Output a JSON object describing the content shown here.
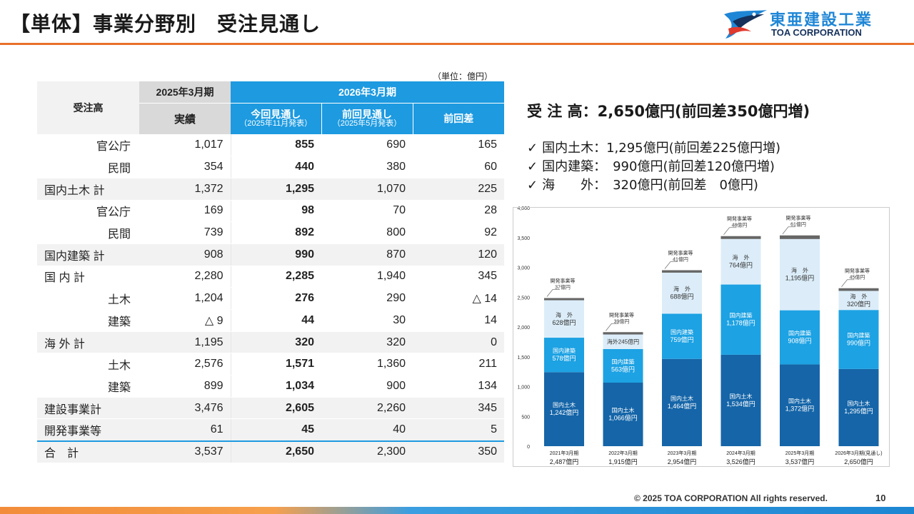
{
  "page": {
    "title": "【単体】事業分野別　受注見通し",
    "unit_note": "（単位：億円）",
    "footer": "© 2025 TOA CORPORATION  All rights reserved.",
    "page_number": "10"
  },
  "logo": {
    "jp": "東亜建設工業",
    "en": "TOA CORPORATION"
  },
  "table": {
    "header_label": "受注高",
    "year_2025": "2025年3月期",
    "year_2026": "2026年3月期",
    "col_actual": "実績",
    "col_current": "今回見通し",
    "col_current_note": "（2025年11月発表）",
    "col_previous": "前回見通し",
    "col_previous_note": "（2025年5月発表）",
    "col_diff": "前回差",
    "rows": [
      {
        "label": "官公庁",
        "actual": "1,017",
        "current": "855",
        "previous": "690",
        "diff": "165"
      },
      {
        "label": "民間",
        "actual": "354",
        "current": "440",
        "previous": "380",
        "diff": "60"
      },
      {
        "label": "国内土木 計",
        "actual": "1,372",
        "current": "1,295",
        "previous": "1,070",
        "diff": "225"
      },
      {
        "label": "官公庁",
        "actual": "169",
        "current": "98",
        "previous": "70",
        "diff": "28"
      },
      {
        "label": "民間",
        "actual": "739",
        "current": "892",
        "previous": "800",
        "diff": "92"
      },
      {
        "label": "国内建築 計",
        "actual": "908",
        "current": "990",
        "previous": "870",
        "diff": "120"
      },
      {
        "label": "国 内 計",
        "actual": "2,280",
        "current": "2,285",
        "previous": "1,940",
        "diff": "345"
      },
      {
        "label": "土木",
        "actual": "1,204",
        "current": "276",
        "previous": "290",
        "diff": "△ 14"
      },
      {
        "label": "建築",
        "actual": "△ 9",
        "current": "44",
        "previous": "30",
        "diff": "14"
      },
      {
        "label": "海 外 計",
        "actual": "1,195",
        "current": "320",
        "previous": "320",
        "diff": "0"
      },
      {
        "label": "土木",
        "actual": "2,576",
        "current": "1,571",
        "previous": "1,360",
        "diff": "211"
      },
      {
        "label": "建築",
        "actual": "899",
        "current": "1,034",
        "previous": "900",
        "diff": "134"
      },
      {
        "label": "建設事業計",
        "actual": "3,476",
        "current": "2,605",
        "previous": "2,260",
        "diff": "345"
      },
      {
        "label": "開発事業等",
        "actual": "61",
        "current": "45",
        "previous": "40",
        "diff": "5"
      },
      {
        "label": "合　計",
        "actual": "3,537",
        "current": "2,650",
        "previous": "2,300",
        "diff": "350"
      }
    ]
  },
  "summary": {
    "headline": "受 注 高：2,650億円(前回差350億円増)",
    "bullets": [
      {
        "mark": "✓",
        "text": "国内土木：1,295億円(前回差225億円増)"
      },
      {
        "mark": "✓",
        "text": "国内建築：　990億円(前回差120億円増)"
      },
      {
        "mark": "✓",
        "text": "海　　外：　320億円(前回差　0億円)"
      }
    ]
  },
  "chart_data": {
    "type": "bar",
    "stacked": true,
    "unit": "億円",
    "ylim": [
      0,
      4000
    ],
    "yticks": [
      "0",
      "500",
      "1,000",
      "1,500",
      "2,000",
      "2,500",
      "3,000",
      "3,500",
      "4,000"
    ],
    "categories": [
      "2021年3月期",
      "2022年3月期",
      "2023年3月期",
      "2024年3月期",
      "2025年3月期",
      "2026年3月期(見通し)"
    ],
    "totals": [
      "2,487",
      "1,915",
      "2,954",
      "3,526",
      "3,537",
      "2,650"
    ],
    "total_unit": "億円",
    "series": [
      {
        "name": "国内土木",
        "color": "#1565a8",
        "text_color": "#ffffff",
        "values": [
          1242,
          1066,
          1464,
          1534,
          1372,
          1295
        ],
        "labels": [
          "1,242",
          "1,066",
          "1,464",
          "1,534",
          "1,372",
          "1,295"
        ]
      },
      {
        "name": "国内建築",
        "color": "#1da2e3",
        "text_color": "#ffffff",
        "values": [
          578,
          563,
          759,
          1178,
          908,
          990
        ],
        "labels": [
          "578",
          "563",
          "759",
          "1,178",
          "908",
          "990"
        ]
      },
      {
        "name": "海　外",
        "color": "#dcedf9",
        "text_color": "#333333",
        "values": [
          628,
          245,
          688,
          764,
          1195,
          320
        ],
        "labels": [
          "628",
          "245",
          "688",
          "764",
          "1,195",
          "320"
        ]
      },
      {
        "name": "開発事業等",
        "color": "#666666",
        "text_color": "#333333",
        "values": [
          37,
          39,
          41,
          48,
          61,
          45
        ],
        "labels": [
          "37",
          "39",
          "41",
          "48",
          "61",
          "45"
        ]
      }
    ],
    "small_bar_label": "海外245",
    "value_unit": "億円"
  }
}
